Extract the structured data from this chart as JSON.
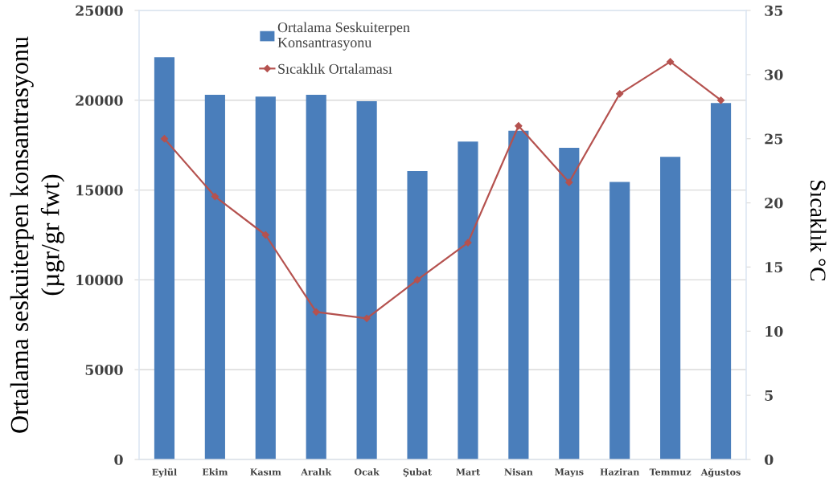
{
  "chart_data": {
    "type": "bar",
    "categories": [
      "Eylül",
      "Ekim",
      "Kasım",
      "Aralık",
      "Ocak",
      "Şubat",
      "Mart",
      "Nisan",
      "Mayıs",
      "Haziran",
      "Temmuz",
      "Ağustos"
    ],
    "series": [
      {
        "name": "Ortalama Seskuiterpen\nKonsantrasyonu",
        "color": "#4a7ebb",
        "values": [
          22400,
          20300,
          20200,
          20300,
          19950,
          16050,
          17700,
          18300,
          17350,
          15450,
          16850,
          19850
        ]
      },
      {
        "name": "Sıcaklık Ortalaması",
        "type": "line",
        "axis": "y2",
        "color": "#b5524f",
        "marker": "diamond",
        "line_style": "solid",
        "values": [
          25,
          20.5,
          17.5,
          11.5,
          11,
          14,
          16.9,
          26,
          21.6,
          28.5,
          31,
          28
        ]
      }
    ],
    "ylabel": "Ortalama seskuiterpen konsantrasyonu\n(µgr/gr fwt)",
    "y2label": "Sıcaklık °C",
    "ylim": [
      0,
      25000
    ],
    "yticks": [
      0,
      5000,
      10000,
      15000,
      20000,
      25000
    ],
    "y2lim": [
      0,
      35
    ],
    "y2ticks": [
      0,
      5,
      10,
      15,
      20,
      25,
      30,
      35
    ],
    "grid": "y",
    "legend": "top"
  }
}
